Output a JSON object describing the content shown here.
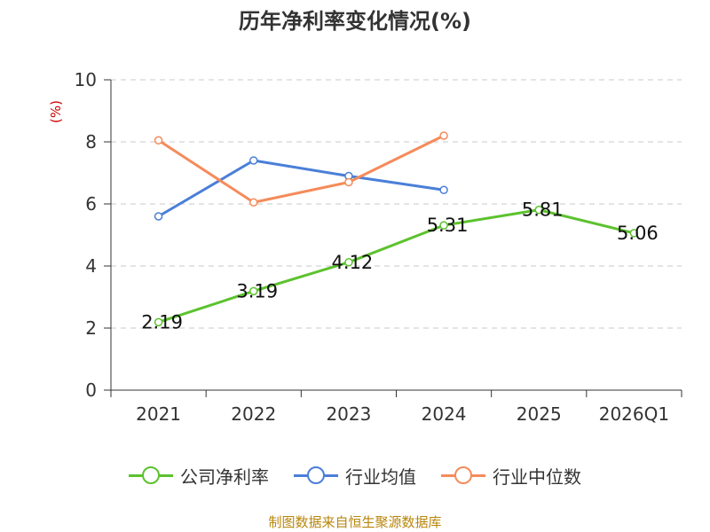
{
  "chart_data": {
    "type": "line",
    "title": "历年净利率变化情况(%)",
    "ylabel": "(%)",
    "xlabel": "",
    "categories": [
      "2021",
      "2022",
      "2023",
      "2024",
      "2025",
      "2026Q1"
    ],
    "ylim": [
      0,
      10
    ],
    "yticks": [
      0,
      2,
      4,
      6,
      8,
      10
    ],
    "grid": true,
    "legend_position": "bottom",
    "series": [
      {
        "name": "公司净利率",
        "color": "#5cc22e",
        "values": [
          2.19,
          3.19,
          4.12,
          5.31,
          5.81,
          5.06
        ],
        "data_labels": [
          "2.19",
          "3.19",
          "4.12",
          "5.31",
          "5.81",
          "5.06"
        ]
      },
      {
        "name": "行业均值",
        "color": "#4a7fd8",
        "values": [
          5.6,
          7.4,
          6.9,
          6.45,
          null,
          null
        ]
      },
      {
        "name": "行业中位数",
        "color": "#f58b5a",
        "values": [
          8.05,
          6.05,
          6.7,
          8.2,
          null,
          null
        ]
      }
    ]
  },
  "footer": {
    "source": "制图数据来自恒生聚源数据库"
  }
}
